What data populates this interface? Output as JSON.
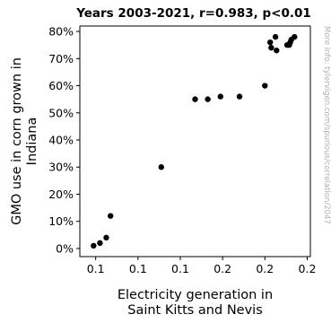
{
  "chart_data": {
    "type": "scatter",
    "title": "Years 2003-2021, r=0.983, p<0.01",
    "xlabel_lines": [
      "Electricity generation in",
      "Saint Kitts and Nevis"
    ],
    "ylabel_lines": [
      "GMO use in corn grown in",
      "Indiana"
    ],
    "watermark": "More info: tylervigen.com/spurious/correlation/2047",
    "x_tick_labels": [
      "0.1",
      "0.1",
      "0.1",
      "0.2",
      "0.2",
      "0.2"
    ],
    "x_ticks": [
      0.1,
      0.12,
      0.14,
      0.16,
      0.18,
      0.2
    ],
    "y_tick_labels": [
      "0%",
      "10%",
      "20%",
      "30%",
      "40%",
      "50%",
      "60%",
      "70%",
      "80%"
    ],
    "y_ticks": [
      0,
      10,
      20,
      30,
      40,
      50,
      60,
      70,
      80
    ],
    "xlim": [
      0.0925,
      0.2015
    ],
    "ylim": [
      -3,
      82
    ],
    "grid": false,
    "marker_color": "#000000",
    "points": [
      {
        "x": 0.099,
        "y": 1
      },
      {
        "x": 0.102,
        "y": 2
      },
      {
        "x": 0.105,
        "y": 4
      },
      {
        "x": 0.107,
        "y": 12
      },
      {
        "x": 0.131,
        "y": 30
      },
      {
        "x": 0.147,
        "y": 55
      },
      {
        "x": 0.153,
        "y": 55
      },
      {
        "x": 0.159,
        "y": 56
      },
      {
        "x": 0.168,
        "y": 56
      },
      {
        "x": 0.18,
        "y": 60
      },
      {
        "x": 0.1825,
        "y": 76
      },
      {
        "x": 0.183,
        "y": 74
      },
      {
        "x": 0.185,
        "y": 78
      },
      {
        "x": 0.1855,
        "y": 73
      },
      {
        "x": 0.1905,
        "y": 75
      },
      {
        "x": 0.1915,
        "y": 75
      },
      {
        "x": 0.192,
        "y": 76
      },
      {
        "x": 0.1925,
        "y": 77
      },
      {
        "x": 0.194,
        "y": 78
      }
    ]
  }
}
